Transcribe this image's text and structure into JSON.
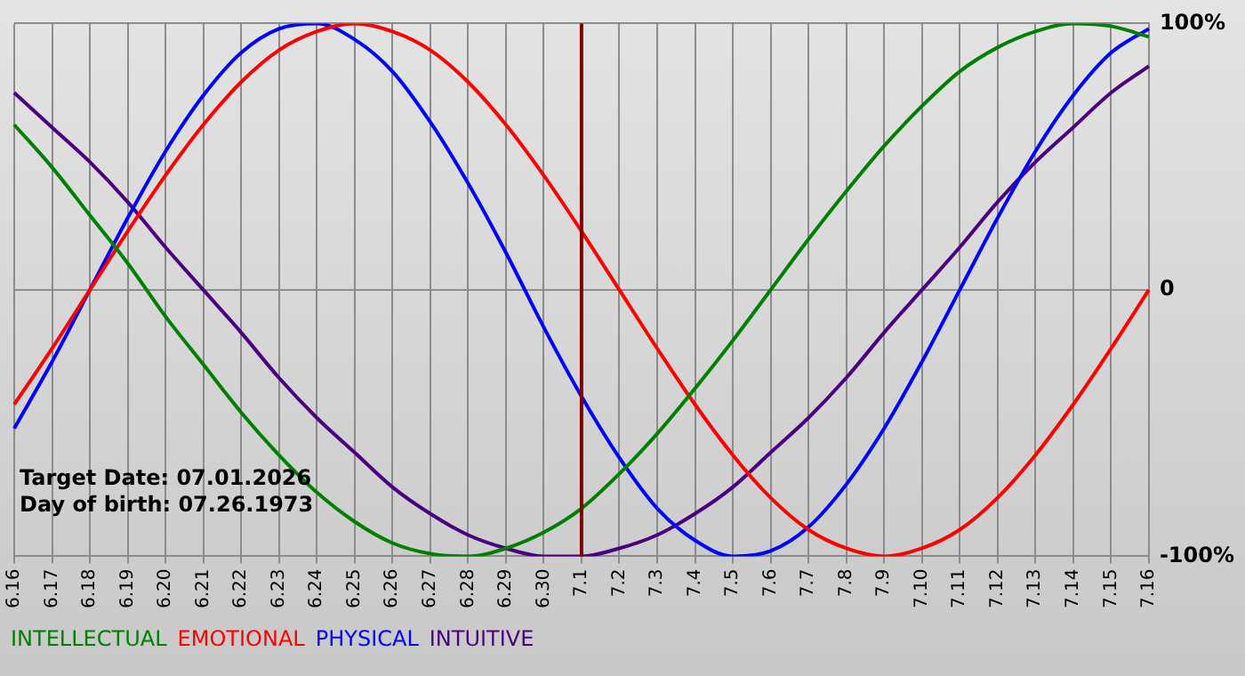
{
  "chart_data": {
    "type": "line",
    "categories": [
      "6.16",
      "6.17",
      "6.18",
      "6.19",
      "6.20",
      "6.21",
      "6.22",
      "6.23",
      "6.24",
      "6.25",
      "6.26",
      "6.27",
      "6.28",
      "6.29",
      "6.30",
      "7.1",
      "7.2",
      "7.3",
      "7.4",
      "7.5",
      "7.6",
      "7.7",
      "7.8",
      "7.9",
      "7.10",
      "7.11",
      "7.12",
      "7.13",
      "7.14",
      "7.15",
      "7.16"
    ],
    "series": [
      {
        "name": "INTELLECTUAL",
        "color": "#008000",
        "values": [
          62,
          46,
          28,
          10,
          -10,
          -28,
          -46,
          -62,
          -76,
          -87,
          -95,
          -99,
          -100,
          -97,
          -91,
          -82,
          -69,
          -54,
          -37,
          -19,
          0,
          19,
          37,
          54,
          69,
          82,
          91,
          97,
          100,
          99,
          95
        ]
      },
      {
        "name": "EMOTIONAL",
        "color": "#ff0000",
        "values": [
          -43,
          -22,
          0,
          22,
          43,
          62,
          78,
          90,
          97,
          100,
          97,
          90,
          78,
          62,
          43,
          22,
          0,
          -22,
          -43,
          -62,
          -78,
          -90,
          -97,
          -100,
          -97,
          -90,
          -78,
          -62,
          -43,
          -22,
          0
        ]
      },
      {
        "name": "PHYSICAL",
        "color": "#0000ff",
        "values": [
          -52,
          -27,
          0,
          27,
          52,
          73,
          89,
          98,
          100,
          94,
          82,
          63,
          40,
          14,
          -14,
          -40,
          -63,
          -82,
          -94,
          -100,
          -98,
          -89,
          -73,
          -52,
          -27,
          0,
          27,
          52,
          73,
          89,
          98
        ]
      },
      {
        "name": "INTUITIVE",
        "color": "#4b0082",
        "values": [
          74,
          61,
          48,
          33,
          16,
          0,
          -16,
          -33,
          -48,
          -61,
          -74,
          -84,
          -92,
          -97,
          -100,
          -100,
          -97,
          -92,
          -84,
          -74,
          -61,
          -48,
          -33,
          -16,
          0,
          16,
          33,
          48,
          61,
          74,
          84
        ]
      }
    ],
    "ylim": [
      -100,
      100
    ],
    "yticks": [
      {
        "value": 100,
        "label": "100%"
      },
      0,
      {
        "value": -100,
        "label": "-100%"
      }
    ],
    "grid": true,
    "legend": "bottom",
    "marker": "none",
    "line_style": "solid",
    "ref_lines": [
      {
        "axis": "x",
        "value": "7.1",
        "color": "#800000"
      }
    ],
    "annotations": [
      "Target Date: 07.01.2026",
      "Day of birth: 07.26.1973"
    ]
  }
}
